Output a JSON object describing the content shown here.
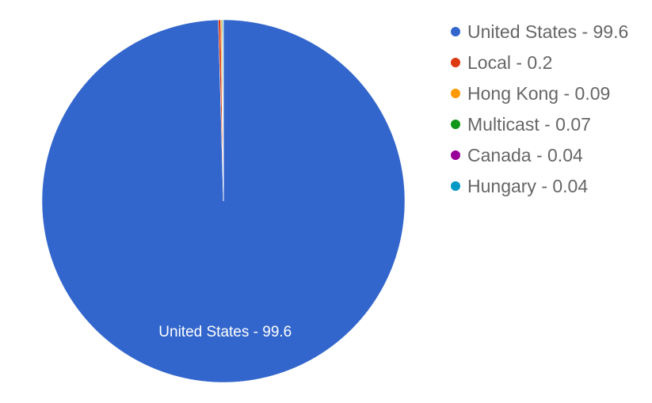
{
  "chart_data": {
    "type": "pie",
    "title": "",
    "legend_position": "right",
    "slices": [
      {
        "name": "United States",
        "value": 99.6,
        "label": "United States - 99.6",
        "color": "#3366cc"
      },
      {
        "name": "Local",
        "value": 0.2,
        "label": "Local - 0.2",
        "color": "#dc3912"
      },
      {
        "name": "Hong Kong",
        "value": 0.09,
        "label": "Hong Kong - 0.09",
        "color": "#ff9900"
      },
      {
        "name": "Multicast",
        "value": 0.07,
        "label": "Multicast - 0.07",
        "color": "#109618"
      },
      {
        "name": "Canada",
        "value": 0.04,
        "label": "Canada - 0.04",
        "color": "#990099"
      },
      {
        "name": "Hungary",
        "value": 0.04,
        "label": "Hungary - 0.04",
        "color": "#0099c6"
      }
    ],
    "slice_labels": [
      {
        "text": "United States - 99.6",
        "slice": 0
      }
    ]
  }
}
